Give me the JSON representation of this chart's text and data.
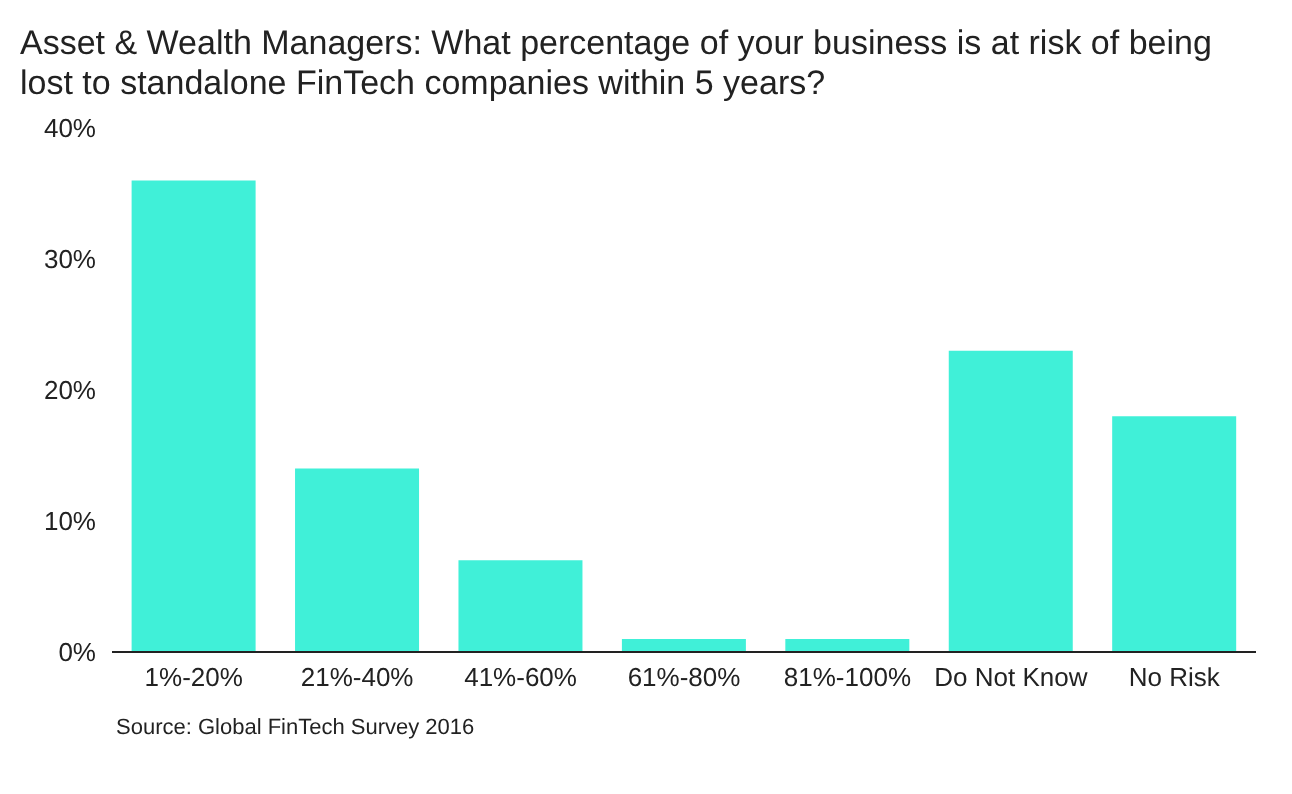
{
  "chart_data": {
    "type": "bar",
    "title": "Asset & Wealth Managers: What percentage of your business is at risk of being lost to standalone FinTech companies within 5 years?",
    "categories": [
      "1%-20%",
      "21%-40%",
      "41%-60%",
      "61%-80%",
      "81%-100%",
      "Do Not Know",
      "No Risk"
    ],
    "values": [
      36,
      14,
      7,
      1,
      1,
      23,
      18
    ],
    "color": "#40f0d8",
    "ylim": [
      0,
      40
    ],
    "yticks": [
      {
        "value": 0,
        "label": "0%"
      },
      {
        "value": 10,
        "label": "10%"
      },
      {
        "value": 20,
        "label": "20%"
      },
      {
        "value": 30,
        "label": "30%"
      },
      {
        "value": 40,
        "label": "40%"
      }
    ],
    "grid": false,
    "legend": false,
    "annotations": [
      "Source: Global FinTech Survey 2016"
    ]
  }
}
